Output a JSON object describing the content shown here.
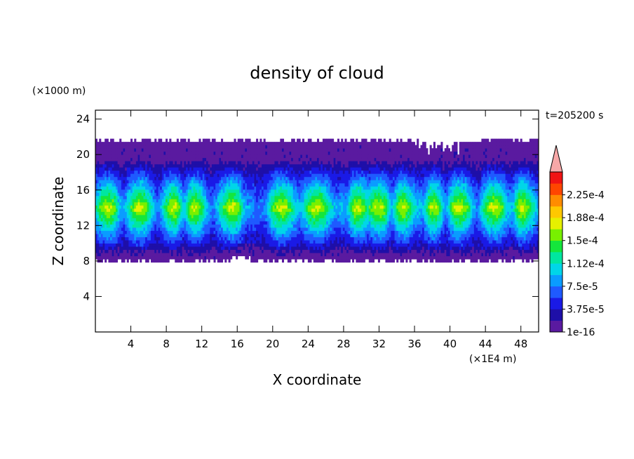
{
  "chart_data": {
    "type": "heatmap",
    "title": "density of cloud",
    "xlabel": "X coordinate",
    "ylabel": "Z coordinate",
    "x_unit": "(×1E4 m)",
    "y_unit": "(×1000 m)",
    "time_label": "t=205200 s",
    "xlim": [
      0,
      50
    ],
    "ylim": [
      0,
      25
    ],
    "x_ticks": [
      4,
      8,
      12,
      16,
      20,
      24,
      28,
      32,
      36,
      40,
      44,
      48
    ],
    "y_ticks": [
      4,
      8,
      12,
      16,
      20,
      24
    ],
    "colorbar": {
      "levels": [
        1e-16,
        1.875e-05,
        3.75e-05,
        5.625e-05,
        7.5e-05,
        9.375e-05,
        0.0001125,
        0.00013125,
        0.00015,
        0.00016875,
        0.0001875,
        0.00020625,
        0.000225,
        0.00024375
      ],
      "labels": [
        "1e-16",
        "3.75e-5",
        "7.5e-5",
        "1.12e-4",
        "1.5e-4",
        "1.88e-4",
        "2.25e-4"
      ],
      "colors": [
        "#5a1aa0",
        "#1e0fa8",
        "#1a1ae6",
        "#1f5aff",
        "#0a9cff",
        "#00d6e8",
        "#00e6a0",
        "#14e63c",
        "#78f000",
        "#e6f000",
        "#ffc800",
        "#ff8c00",
        "#ff4600",
        "#f01414"
      ],
      "extend_color": "#f7a8a8"
    },
    "cloud_layer": {
      "z_bottom": 7.8,
      "z_top": 22.3,
      "core_z_range": [
        11,
        17
      ],
      "core_max_level_index": 9,
      "columns_x": [
        1.5,
        5,
        9,
        11,
        15.5,
        21,
        25,
        29.5,
        32,
        34.5,
        38,
        41,
        45,
        48
      ],
      "gaps_x": [
        3,
        7,
        10,
        13,
        17,
        19,
        28.3,
        33.5,
        37,
        39.5,
        43,
        47
      ]
    }
  }
}
